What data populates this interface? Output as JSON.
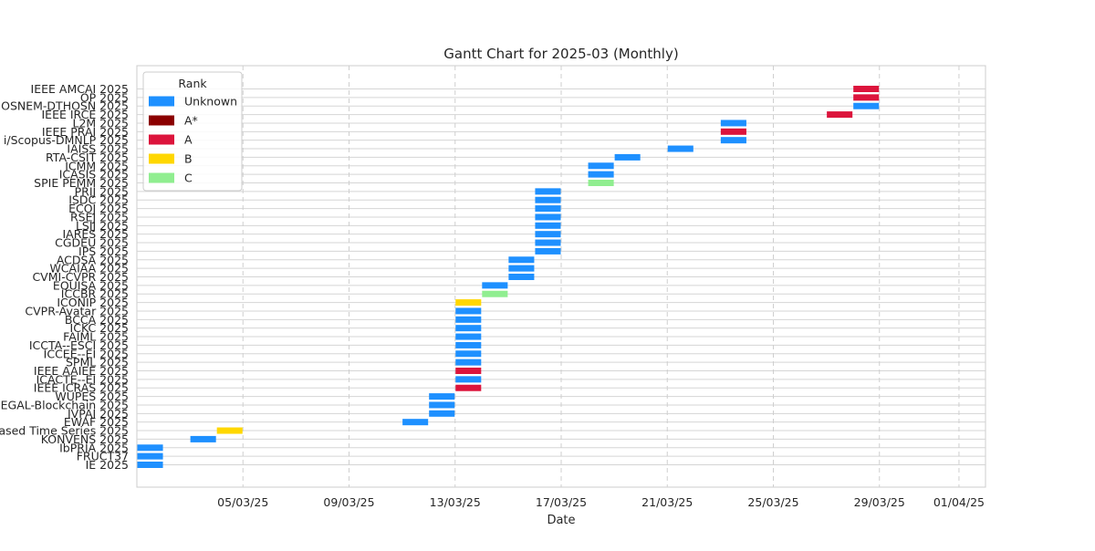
{
  "chart_data": {
    "type": "gantt",
    "title": "Gantt Chart for 2025-03 (Monthly)",
    "xlabel": "Date",
    "ylabel": "",
    "xlim": [
      "2025-03-01",
      "2025-04-02"
    ],
    "grid": true,
    "legend_position": "top-left",
    "x_ticks": [
      "05/03/25",
      "09/03/25",
      "13/03/25",
      "17/03/25",
      "21/03/25",
      "25/03/25",
      "29/03/25",
      "01/04/25"
    ],
    "legend": {
      "title": "Rank",
      "entries": [
        {
          "label": "Unknown",
          "color": "#1e90ff"
        },
        {
          "label": "A*",
          "color": "#8b0000"
        },
        {
          "label": "A",
          "color": "#dc143c"
        },
        {
          "label": "B",
          "color": "#ffd700"
        },
        {
          "label": "C",
          "color": "#90ee90"
        }
      ]
    },
    "tasks": [
      {
        "name": "IE 2025",
        "start": "2025-03-01",
        "end": "2025-03-02",
        "rank": "Unknown"
      },
      {
        "name": "FRUCT37",
        "start": "2025-03-01",
        "end": "2025-03-02",
        "rank": "Unknown"
      },
      {
        "name": "IbPRIA 2025",
        "start": "2025-03-01",
        "end": "2025-03-02",
        "rank": "Unknown"
      },
      {
        "name": "KONVENS 2025",
        "start": "2025-03-03",
        "end": "2025-03-04",
        "rank": "Unknown"
      },
      {
        "name": "ased Time Series 2025",
        "start": "2025-03-04",
        "end": "2025-03-05",
        "rank": "B"
      },
      {
        "name": "EWAF 2025",
        "start": "2025-03-11",
        "end": "2025-03-12",
        "rank": "Unknown"
      },
      {
        "name": "IVPAI 2025",
        "start": "2025-03-12",
        "end": "2025-03-13",
        "rank": "Unknown"
      },
      {
        "name": "EGAL-Blockchain 2025",
        "start": "2025-03-12",
        "end": "2025-03-13",
        "rank": "Unknown"
      },
      {
        "name": "WUPES 2025",
        "start": "2025-03-12",
        "end": "2025-03-13",
        "rank": "Unknown"
      },
      {
        "name": "IEEE ICRAS 2025",
        "start": "2025-03-13",
        "end": "2025-03-14",
        "rank": "A"
      },
      {
        "name": "ICACTE--EI 2025",
        "start": "2025-03-13",
        "end": "2025-03-14",
        "rank": "Unknown"
      },
      {
        "name": "IEEE AAIEE 2025",
        "start": "2025-03-13",
        "end": "2025-03-14",
        "rank": "A"
      },
      {
        "name": "SPML 2025",
        "start": "2025-03-13",
        "end": "2025-03-14",
        "rank": "Unknown"
      },
      {
        "name": "ICCEE--EI 2025",
        "start": "2025-03-13",
        "end": "2025-03-14",
        "rank": "Unknown"
      },
      {
        "name": "ICCTA--ESCI 2025",
        "start": "2025-03-13",
        "end": "2025-03-14",
        "rank": "Unknown"
      },
      {
        "name": "FAIML 2025",
        "start": "2025-03-13",
        "end": "2025-03-14",
        "rank": "Unknown"
      },
      {
        "name": "ICKC 2025",
        "start": "2025-03-13",
        "end": "2025-03-14",
        "rank": "Unknown"
      },
      {
        "name": "BCCA 2025",
        "start": "2025-03-13",
        "end": "2025-03-14",
        "rank": "Unknown"
      },
      {
        "name": "CVPR-Avatar 2025",
        "start": "2025-03-13",
        "end": "2025-03-14",
        "rank": "Unknown"
      },
      {
        "name": "ICONIP 2025",
        "start": "2025-03-13",
        "end": "2025-03-14",
        "rank": "B"
      },
      {
        "name": "ICCBR 2025",
        "start": "2025-03-14",
        "end": "2025-03-15",
        "rank": "C"
      },
      {
        "name": "EQUISA 2025",
        "start": "2025-03-14",
        "end": "2025-03-15",
        "rank": "Unknown"
      },
      {
        "name": "CVMI-CVPR 2025",
        "start": "2025-03-15",
        "end": "2025-03-16",
        "rank": "Unknown"
      },
      {
        "name": "WCAIAA 2025",
        "start": "2025-03-15",
        "end": "2025-03-16",
        "rank": "Unknown"
      },
      {
        "name": "ACDSA 2025",
        "start": "2025-03-15",
        "end": "2025-03-16",
        "rank": "Unknown"
      },
      {
        "name": "IPS 2025",
        "start": "2025-03-16",
        "end": "2025-03-17",
        "rank": "Unknown"
      },
      {
        "name": "CGDEU 2025",
        "start": "2025-03-16",
        "end": "2025-03-17",
        "rank": "Unknown"
      },
      {
        "name": "IARES 2025",
        "start": "2025-03-16",
        "end": "2025-03-17",
        "rank": "Unknown"
      },
      {
        "name": "LSIJ 2025",
        "start": "2025-03-16",
        "end": "2025-03-17",
        "rank": "Unknown"
      },
      {
        "name": "RSEJ 2025",
        "start": "2025-03-16",
        "end": "2025-03-17",
        "rank": "Unknown"
      },
      {
        "name": "ECOJ 2025",
        "start": "2025-03-16",
        "end": "2025-03-17",
        "rank": "Unknown"
      },
      {
        "name": "ISDC 2025",
        "start": "2025-03-16",
        "end": "2025-03-17",
        "rank": "Unknown"
      },
      {
        "name": "PRIJ 2025",
        "start": "2025-03-16",
        "end": "2025-03-17",
        "rank": "Unknown"
      },
      {
        "name": "SPIE PEMM 2025",
        "start": "2025-03-18",
        "end": "2025-03-19",
        "rank": "C"
      },
      {
        "name": "ICASIS 2025",
        "start": "2025-03-18",
        "end": "2025-03-19",
        "rank": "Unknown"
      },
      {
        "name": "ICMM 2025",
        "start": "2025-03-18",
        "end": "2025-03-19",
        "rank": "Unknown"
      },
      {
        "name": "RTA-CSIT 2025",
        "start": "2025-03-19",
        "end": "2025-03-20",
        "rank": "Unknown"
      },
      {
        "name": "IAISS 2025",
        "start": "2025-03-21",
        "end": "2025-03-22",
        "rank": "Unknown"
      },
      {
        "name": "i/Scopus-DMNLP 2025",
        "start": "2025-03-23",
        "end": "2025-03-24",
        "rank": "Unknown"
      },
      {
        "name": "IEEE PRAI 2025",
        "start": "2025-03-23",
        "end": "2025-03-24",
        "rank": "A"
      },
      {
        "name": "L2M 2025",
        "start": "2025-03-23",
        "end": "2025-03-24",
        "rank": "Unknown"
      },
      {
        "name": "IEEE IRCE 2025",
        "start": "2025-03-27",
        "end": "2025-03-28",
        "rank": "A"
      },
      {
        "name": "OSNEM-DTHOSN 2025",
        "start": "2025-03-28",
        "end": "2025-03-29",
        "rank": "Unknown"
      },
      {
        "name": "OP 2025",
        "start": "2025-03-28",
        "end": "2025-03-29",
        "rank": "A"
      },
      {
        "name": "IEEE AMCAI 2025",
        "start": "2025-03-28",
        "end": "2025-03-29",
        "rank": "A"
      }
    ]
  }
}
